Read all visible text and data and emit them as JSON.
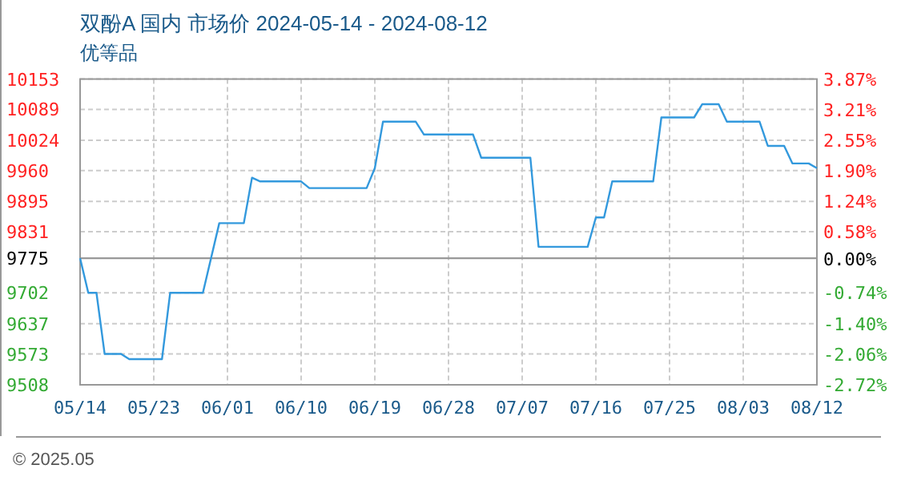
{
  "chart_data": {
    "type": "line",
    "title": "双酚A 国内 市场价 2024-05-14 - 2024-08-12",
    "subtitle": "优等品",
    "x": [
      "2024-05-14",
      "2024-05-15",
      "2024-05-16",
      "2024-05-17",
      "2024-05-19",
      "2024-05-20",
      "2024-05-24",
      "2024-05-25",
      "2024-05-29",
      "2024-05-31",
      "2024-06-03",
      "2024-06-04",
      "2024-06-05",
      "2024-06-10",
      "2024-06-11",
      "2024-06-18",
      "2024-06-19",
      "2024-06-20",
      "2024-06-24",
      "2024-06-25",
      "2024-07-01",
      "2024-07-02",
      "2024-07-08",
      "2024-07-09",
      "2024-07-15",
      "2024-07-16",
      "2024-07-17",
      "2024-07-18",
      "2024-07-23",
      "2024-07-24",
      "2024-07-28",
      "2024-07-29",
      "2024-07-31",
      "2024-08-01",
      "2024-08-05",
      "2024-08-06",
      "2024-08-08",
      "2024-08-09",
      "2024-08-11",
      "2024-08-12"
    ],
    "series": [
      {
        "color": "#3399dd",
        "values": [
          9775,
          9702,
          9702,
          9573,
          9573,
          9562,
          9562,
          9702,
          9702,
          9849,
          9849,
          9945,
          9937,
          9937,
          9923,
          9923,
          9965,
          10063,
          10063,
          10036,
          10036,
          9987,
          9987,
          9799,
          9799,
          9861,
          9861,
          9937,
          9937,
          10072,
          10072,
          10100,
          10100,
          10063,
          10063,
          10012,
          10012,
          9975,
          9975,
          9965
        ]
      }
    ],
    "xlim": [
      "2024-05-14",
      "2024-08-12"
    ],
    "xticks": [
      {
        "value": "2024-05-14",
        "label": "05/14"
      },
      {
        "value": "2024-05-23",
        "label": "05/23"
      },
      {
        "value": "2024-06-01",
        "label": "06/01"
      },
      {
        "value": "2024-06-10",
        "label": "06/10"
      },
      {
        "value": "2024-06-19",
        "label": "06/19"
      },
      {
        "value": "2024-06-28",
        "label": "06/28"
      },
      {
        "value": "2024-07-07",
        "label": "07/07"
      },
      {
        "value": "2024-07-16",
        "label": "07/16"
      },
      {
        "value": "2024-07-25",
        "label": "07/25"
      },
      {
        "value": "2024-08-03",
        "label": "08/03"
      },
      {
        "value": "2024-08-12",
        "label": "08/12"
      }
    ],
    "ylim": [
      9508,
      10153
    ],
    "yticks": [
      9508,
      9573,
      9637,
      9702,
      9775,
      9831,
      9895,
      9960,
      10024,
      10089,
      10153
    ],
    "y2lim": [
      -2.72,
      3.87
    ],
    "y2ticks": [
      {
        "value": -2.72,
        "label": "-2.72%"
      },
      {
        "value": -2.06,
        "label": "-2.06%"
      },
      {
        "value": -1.4,
        "label": "-1.40%"
      },
      {
        "value": -0.74,
        "label": "-0.74%"
      },
      {
        "value": 0,
        "label": "0.00%"
      },
      {
        "value": 0.58,
        "label": "0.58%"
      },
      {
        "value": 1.24,
        "label": "1.24%"
      },
      {
        "value": 1.9,
        "label": "1.90%"
      },
      {
        "value": 2.55,
        "label": "2.55%"
      },
      {
        "value": 3.21,
        "label": "3.21%"
      },
      {
        "value": 3.87,
        "label": "3.87%"
      }
    ],
    "grid": true,
    "ref_lines": [
      {
        "axis": "y",
        "value": 9775,
        "color": "#999999"
      }
    ],
    "annotations": [
      "© 2025.05"
    ]
  }
}
